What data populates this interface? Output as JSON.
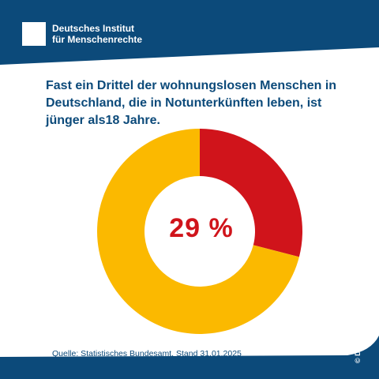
{
  "brand": {
    "line1": "Deutsches Institut",
    "line2": "für Menschenrechte"
  },
  "headline": {
    "line1": "Fast ein Drittel der wohnungslosen Menschen in",
    "line2": "Deutschland, die in Notunterkünften leben, ist",
    "line3": "jünger als18 Jahre."
  },
  "source": "Quelle: Statistisches Bundesamt, Stand 31.01.2025",
  "copyright": "© DIMR",
  "colors": {
    "navy": "#0c4a7a",
    "red": "#d0141b",
    "yellow": "#fbb900",
    "white": "#ffffff"
  },
  "chart_data": {
    "type": "pie",
    "title": "",
    "center_label": "29 %",
    "slices": [
      {
        "value": 29,
        "color": "#d0141b"
      },
      {
        "value": 71,
        "color": "#fbb900"
      }
    ]
  }
}
